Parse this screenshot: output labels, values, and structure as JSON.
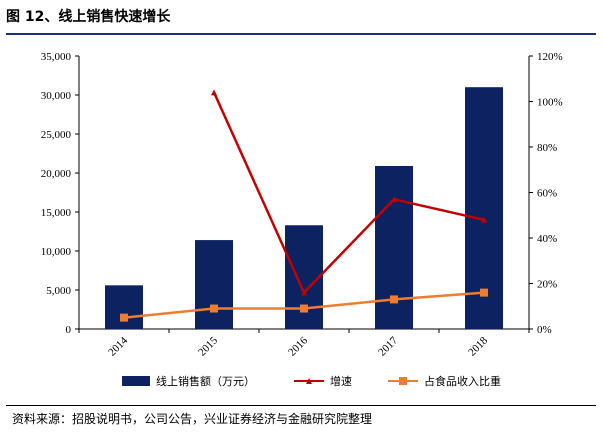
{
  "title": "图 12、线上销售快速增长",
  "source": "资料来源：招股说明书，公司公告，兴业证券经济与金融研究院整理",
  "colors": {
    "bar": "#0d2260",
    "growth": "#c00000",
    "share": "#ed7d31",
    "rule": "#1d2f6f"
  },
  "chart_data": {
    "type": "bar",
    "categories": [
      "2014",
      "2015",
      "2016",
      "2017",
      "2018"
    ],
    "series": [
      {
        "name": "线上销售额（万元）",
        "type": "bar",
        "axis": "left",
        "values": [
          5600,
          11400,
          13300,
          20900,
          31000
        ]
      },
      {
        "name": "增速",
        "type": "line",
        "axis": "right",
        "marker": "triangle",
        "values": [
          null,
          104,
          16,
          57,
          48
        ]
      },
      {
        "name": "占食品收入比重",
        "type": "line",
        "axis": "right",
        "marker": "square",
        "values": [
          5,
          9,
          9,
          13,
          16
        ]
      }
    ],
    "yleft": {
      "min": 0,
      "max": 35000,
      "step": 5000,
      "ticks": [
        "0",
        "5,000",
        "10,000",
        "15,000",
        "20,000",
        "25,000",
        "30,000",
        "35,000"
      ]
    },
    "yright": {
      "min": 0,
      "max": 120,
      "step": 20,
      "ticks": [
        "0%",
        "20%",
        "40%",
        "60%",
        "80%",
        "100%",
        "120%"
      ]
    },
    "legend_position": "bottom",
    "grid": false
  }
}
